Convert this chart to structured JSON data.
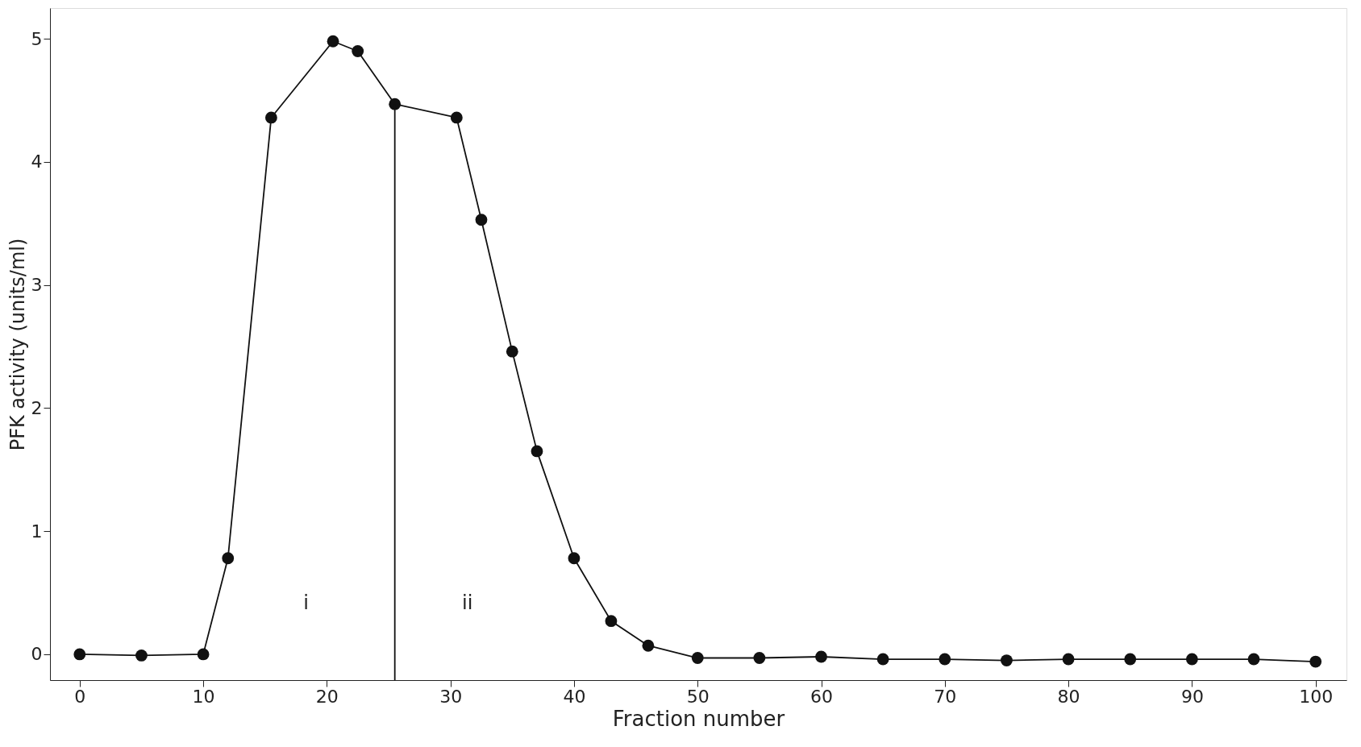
{
  "chart_data": {
    "type": "line",
    "xlabel": "Fraction number",
    "ylabel": "PFK activity (units/ml)",
    "x": [
      0,
      5,
      10,
      12,
      15.5,
      20.5,
      22.5,
      25.5,
      30.5,
      32.5,
      35,
      37,
      40,
      43,
      46,
      50,
      55,
      60,
      65,
      70,
      75,
      80,
      85,
      90,
      95,
      100
    ],
    "series": [
      {
        "color": "#111111",
        "values": [
          0,
          -0.01,
          0,
          0.78,
          4.36,
          4.98,
          4.9,
          4.47,
          4.36,
          3.53,
          2.46,
          1.65,
          0.78,
          0.27,
          0.07,
          -0.03,
          -0.03,
          -0.02,
          -0.04,
          -0.04,
          -0.05,
          -0.04,
          -0.04,
          -0.04,
          -0.04,
          -0.06
        ]
      }
    ],
    "xlim": [
      -2.4,
      102.5
    ],
    "ylim": [
      -0.21,
      5.25
    ],
    "xticks": [
      0,
      10,
      20,
      30,
      40,
      50,
      60,
      70,
      80,
      90,
      100
    ],
    "yticks": [
      0,
      1,
      2,
      3,
      4,
      5
    ],
    "ref_lines": [
      {
        "axis": "x",
        "value": 25.5,
        "color": "#111111"
      }
    ],
    "annotations": [
      "i",
      "ii"
    ],
    "grid": false,
    "marker": "circle",
    "line_style": "solid"
  }
}
